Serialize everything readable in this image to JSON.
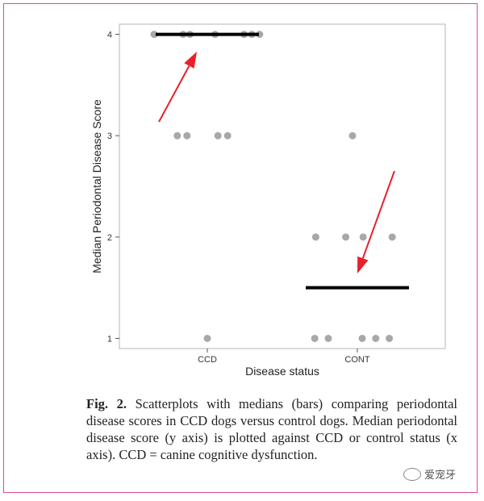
{
  "chart_data": {
    "type": "scatter",
    "xlabel": "Disease status",
    "ylabel": "Median Periodontal Disease Score",
    "categories": [
      "CCD",
      "CONT"
    ],
    "ylim": [
      0.9,
      4.1
    ],
    "yticks": [
      1,
      2,
      3,
      4
    ],
    "grid": false,
    "points": [
      {
        "group": "CCD",
        "y": 4,
        "offset": -0.55
      },
      {
        "group": "CCD",
        "y": 4,
        "offset": -0.25
      },
      {
        "group": "CCD",
        "y": 4,
        "offset": -0.18
      },
      {
        "group": "CCD",
        "y": 4,
        "offset": 0.08
      },
      {
        "group": "CCD",
        "y": 4,
        "offset": 0.38
      },
      {
        "group": "CCD",
        "y": 4,
        "offset": 0.46
      },
      {
        "group": "CCD",
        "y": 4,
        "offset": 0.54
      },
      {
        "group": "CCD",
        "y": 3,
        "offset": -0.31
      },
      {
        "group": "CCD",
        "y": 3,
        "offset": -0.21
      },
      {
        "group": "CCD",
        "y": 3,
        "offset": 0.11
      },
      {
        "group": "CCD",
        "y": 3,
        "offset": 0.21
      },
      {
        "group": "CCD",
        "y": 1,
        "offset": 0.0
      },
      {
        "group": "CONT",
        "y": 3,
        "offset": -0.05
      },
      {
        "group": "CONT",
        "y": 2,
        "offset": -0.43
      },
      {
        "group": "CONT",
        "y": 2,
        "offset": -0.12
      },
      {
        "group": "CONT",
        "y": 2,
        "offset": 0.06
      },
      {
        "group": "CONT",
        "y": 2,
        "offset": 0.36
      },
      {
        "group": "CONT",
        "y": 1,
        "offset": -0.44
      },
      {
        "group": "CONT",
        "y": 1,
        "offset": -0.3
      },
      {
        "group": "CONT",
        "y": 1,
        "offset": 0.05
      },
      {
        "group": "CONT",
        "y": 1,
        "offset": 0.19
      },
      {
        "group": "CONT",
        "y": 1,
        "offset": 0.33
      }
    ],
    "medians": [
      {
        "group": "CCD",
        "value": 4
      },
      {
        "group": "CONT",
        "value": 1.5
      }
    ],
    "annotations": [
      {
        "type": "arrow",
        "target": "CCD median",
        "color": "#e8202a"
      },
      {
        "type": "arrow",
        "target": "CONT median",
        "color": "#e8202a"
      }
    ],
    "colors": {
      "points": "#a8a8a8",
      "median": "#000000",
      "arrow": "#e8202a",
      "frame": "#e0469a"
    }
  },
  "caption": {
    "label": "Fig. 2.",
    "text": "Scatterplots with medians (bars) comparing periodontal disease scores in CCD dogs versus control dogs. Median periodontal disease score (y axis) is plotted against CCD or control status (x axis). CCD = canine cognitive dysfunction."
  },
  "watermark": {
    "text": "爱宠牙",
    "icon": "wechat-logo-icon"
  }
}
